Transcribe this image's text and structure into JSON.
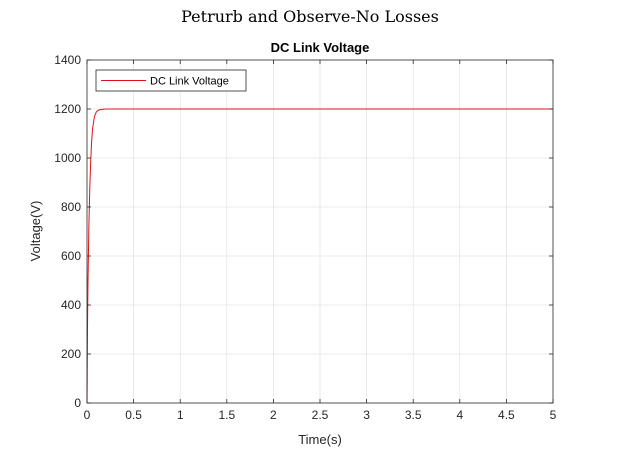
{
  "figure": {
    "suptitle": "Petrurb and Observe-No Losses"
  },
  "chart_data": {
    "type": "line",
    "title": "DC Link Voltage",
    "xlabel": "Time(s)",
    "ylabel": "Voltage(V)",
    "xlim": [
      0,
      5
    ],
    "ylim": [
      0,
      1400
    ],
    "xticks": [
      0,
      0.5,
      1,
      1.5,
      2,
      2.5,
      3,
      3.5,
      4,
      4.5,
      5
    ],
    "xtick_labels": [
      "0",
      "0.5",
      "1",
      "1.5",
      "2",
      "2.5",
      "3",
      "3.5",
      "4",
      "4.5",
      "5"
    ],
    "yticks": [
      0,
      200,
      400,
      600,
      800,
      1000,
      1200,
      1400
    ],
    "ytick_labels": [
      "0",
      "200",
      "400",
      "600",
      "800",
      "1000",
      "1200",
      "1400"
    ],
    "grid": true,
    "legend": {
      "placement": "top-left",
      "entries": [
        "DC Link Voltage"
      ]
    },
    "series": [
      {
        "name": "DC Link Voltage",
        "color": "#e0101a",
        "x": [
          0,
          0.005,
          0.01,
          0.02,
          0.03,
          0.04,
          0.05,
          0.06,
          0.08,
          0.1,
          0.12,
          0.15,
          0.2,
          0.3,
          0.5,
          1,
          2,
          3,
          4,
          5
        ],
        "y": [
          0,
          300,
          480,
          720,
          880,
          990,
          1070,
          1120,
          1170,
          1188,
          1195,
          1198,
          1200,
          1200,
          1200,
          1200,
          1200,
          1200,
          1200,
          1200
        ]
      }
    ]
  }
}
